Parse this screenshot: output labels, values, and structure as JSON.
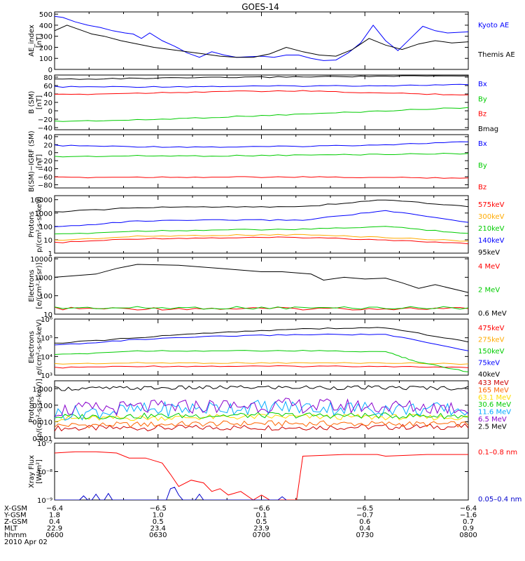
{
  "title": "GOES-14",
  "chart_data": [
    {
      "id": "ae",
      "type": "line",
      "ylabel": [
        "AE_index",
        "[nT]"
      ],
      "yticks": [
        "500",
        "400",
        "300",
        "200",
        "100",
        "0"
      ],
      "ytick_values": [
        500,
        400,
        300,
        200,
        100,
        0
      ],
      "ylim": [
        0,
        520
      ],
      "scale": "linear",
      "series": [
        {
          "name": "Kyoto AE",
          "color": "#0000ff",
          "x": [
            0,
            2,
            5,
            8,
            11,
            14,
            17,
            19,
            21,
            23,
            26,
            29,
            32,
            35,
            38,
            41,
            44,
            47,
            50,
            53,
            56,
            59,
            62,
            65,
            68,
            71,
            74,
            77,
            80,
            83,
            86,
            89,
            92,
            95,
            100
          ],
          "values": [
            480,
            470,
            430,
            400,
            380,
            350,
            330,
            320,
            280,
            330,
            260,
            210,
            150,
            110,
            160,
            130,
            110,
            115,
            120,
            110,
            130,
            130,
            100,
            80,
            85,
            150,
            240,
            400,
            260,
            170,
            280,
            390,
            350,
            330,
            340
          ]
        },
        {
          "name": "Themis AE",
          "color": "#000000",
          "x": [
            0,
            3,
            6,
            9,
            12,
            16,
            20,
            24,
            28,
            32,
            36,
            40,
            44,
            48,
            52,
            56,
            60,
            64,
            68,
            72,
            76,
            80,
            84,
            88,
            92,
            96,
            100
          ],
          "values": [
            350,
            400,
            360,
            320,
            300,
            260,
            230,
            200,
            180,
            160,
            140,
            120,
            110,
            110,
            140,
            200,
            160,
            130,
            120,
            180,
            280,
            220,
            180,
            230,
            260,
            240,
            250
          ]
        }
      ]
    },
    {
      "id": "bsm",
      "type": "line",
      "ylabel": [
        "B (SM)",
        "[nT]"
      ],
      "yticks": [
        "80",
        "60",
        "40",
        "20",
        "0",
        "−20",
        "−40"
      ],
      "ytick_values": [
        80,
        60,
        40,
        20,
        0,
        -20,
        -40
      ],
      "ylim": [
        -45,
        85
      ],
      "scale": "linear",
      "series": [
        {
          "name": "Bx",
          "color": "#0000ff",
          "x": [
            0,
            20,
            40,
            60,
            80,
            100
          ],
          "values": [
            57,
            57,
            58,
            59,
            60,
            62
          ]
        },
        {
          "name": "By",
          "color": "#00cc00",
          "x": [
            0,
            20,
            40,
            60,
            80,
            100
          ],
          "values": [
            -25,
            -22,
            -15,
            -8,
            0,
            8
          ]
        },
        {
          "name": "Bz",
          "color": "#ff0000",
          "x": [
            0,
            20,
            40,
            60,
            80,
            100
          ],
          "values": [
            38,
            42,
            46,
            47,
            42,
            38
          ]
        },
        {
          "name": "Bmag",
          "color": "#000000",
          "x": [
            0,
            20,
            40,
            60,
            80,
            100
          ],
          "values": [
            75,
            77,
            79,
            81,
            82,
            83
          ]
        }
      ]
    },
    {
      "id": "bigrf",
      "type": "line",
      "ylabel": [
        "B(SM)−IGRF (SM)",
        "[nT]"
      ],
      "yticks": [
        "40",
        "20",
        "0",
        "−20",
        "−40",
        "−60",
        "−80"
      ],
      "ytick_values": [
        40,
        20,
        0,
        -20,
        -40,
        -60,
        -80
      ],
      "ylim": [
        -88,
        45
      ],
      "scale": "linear",
      "series": [
        {
          "name": "Bx",
          "color": "#0000ff",
          "x": [
            0,
            20,
            40,
            60,
            80,
            100
          ],
          "values": [
            18,
            15,
            14,
            16,
            20,
            27
          ]
        },
        {
          "name": "By",
          "color": "#00cc00",
          "x": [
            0,
            20,
            40,
            60,
            80,
            100
          ],
          "values": [
            -10,
            -8,
            -8,
            -6,
            -4,
            -2
          ]
        },
        {
          "name": "Bz",
          "color": "#ff0000",
          "x": [
            0,
            20,
            40,
            60,
            80,
            100
          ],
          "values": [
            -62,
            -61,
            -61,
            -61,
            -62,
            -63
          ]
        }
      ]
    },
    {
      "id": "protons_low",
      "type": "line",
      "ylabel": [
        "Protons",
        "p/(cm²-s-sr-keV)"
      ],
      "yticks": [
        "10000",
        "1000",
        "100",
        "10",
        "1"
      ],
      "ytick_values": [
        10000,
        1000,
        100,
        10,
        1
      ],
      "ylim": [
        1,
        20000
      ],
      "scale": "log",
      "series": [
        {
          "name": "575keV",
          "color": "#ff0000",
          "x": [
            0,
            20,
            40,
            60,
            80,
            100
          ],
          "values": [
            6,
            12,
            14,
            15,
            10,
            5
          ]
        },
        {
          "name": "300keV",
          "color": "#ffaa00",
          "x": [
            0,
            20,
            40,
            60,
            80,
            100
          ],
          "values": [
            9,
            18,
            22,
            24,
            15,
            8
          ]
        },
        {
          "name": "210keV",
          "color": "#00cc00",
          "x": [
            0,
            20,
            40,
            60,
            80,
            100
          ],
          "values": [
            25,
            45,
            55,
            60,
            100,
            30
          ]
        },
        {
          "name": "140keV",
          "color": "#0000ff",
          "x": [
            0,
            20,
            40,
            60,
            80,
            100
          ],
          "values": [
            90,
            250,
            300,
            300,
            1500,
            200
          ]
        },
        {
          "name": "95keV",
          "color": "#000000",
          "x": [
            0,
            20,
            40,
            60,
            80,
            100
          ],
          "values": [
            1200,
            2500,
            3000,
            3000,
            10000,
            3000
          ]
        }
      ]
    },
    {
      "id": "electrons_mev",
      "type": "line",
      "ylabel": [
        "Electrons",
        "[e/(cm²-s-sr)]"
      ],
      "yticks": [
        "10000",
        "1000",
        "100",
        "10"
      ],
      "ytick_values": [
        10000,
        1000,
        100,
        10
      ],
      "ylim": [
        10,
        12000
      ],
      "scale": "log",
      "series": [
        {
          "name": "4 MeV",
          "color": "#ff0000",
          "x": [
            0,
            20,
            40,
            60,
            80,
            100
          ],
          "values": [
            20,
            20,
            20,
            20,
            20,
            20
          ]
        },
        {
          "name": "2 MeV",
          "color": "#00cc00",
          "x": [
            0,
            20,
            40,
            60,
            80,
            100
          ],
          "values": [
            22,
            22,
            22,
            22,
            22,
            22
          ]
        },
        {
          "name": "0.6 MeV",
          "color": "#000000",
          "x": [
            0,
            10,
            15,
            20,
            30,
            40,
            50,
            55,
            62,
            65,
            70,
            75,
            80,
            84,
            88,
            92,
            100
          ],
          "values": [
            1000,
            1500,
            3000,
            5000,
            4500,
            3000,
            2000,
            2000,
            1500,
            700,
            1000,
            800,
            900,
            500,
            250,
            400,
            150
          ]
        }
      ]
    },
    {
      "id": "electrons_kev",
      "type": "line",
      "ylabel": [
        "Electrons",
        "e/(cm²-s-sr-keV)"
      ],
      "yticks": [
        "10⁶",
        "10⁵",
        "10⁴",
        "10³"
      ],
      "ytick_values": [
        1000000,
        100000,
        10000,
        1000
      ],
      "ylim": [
        1000,
        1000000
      ],
      "scale": "log",
      "series": [
        {
          "name": "475keV",
          "color": "#ff0000",
          "x": [
            0,
            20,
            40,
            60,
            80,
            100
          ],
          "values": [
            2500,
            3000,
            3000,
            3000,
            3000,
            2500
          ]
        },
        {
          "name": "275keV",
          "color": "#ffaa00",
          "x": [
            0,
            20,
            40,
            60,
            80,
            100
          ],
          "values": [
            4000,
            4500,
            4500,
            4500,
            4500,
            4000
          ]
        },
        {
          "name": "150keV",
          "color": "#00cc00",
          "x": [
            0,
            20,
            40,
            60,
            80,
            88,
            100
          ],
          "values": [
            12000,
            20000,
            20000,
            20000,
            18000,
            5000,
            1500
          ]
        },
        {
          "name": "75keV",
          "color": "#0000ff",
          "x": [
            0,
            20,
            40,
            60,
            80,
            100
          ],
          "values": [
            40000,
            80000,
            120000,
            150000,
            150000,
            20000
          ]
        },
        {
          "name": "40keV",
          "color": "#000000",
          "x": [
            0,
            20,
            40,
            60,
            80,
            100
          ],
          "values": [
            50000,
            100000,
            200000,
            300000,
            350000,
            60000
          ]
        }
      ]
    },
    {
      "id": "protons_high",
      "type": "line",
      "ylabel": [
        "Protons",
        "[p/(cm²-s-sr-keV)]"
      ],
      "yticks": [
        "1.000",
        "0.100",
        "0.010",
        "0.001"
      ],
      "ytick_values": [
        1,
        0.1,
        0.01,
        0.001
      ],
      "ylim": [
        0.001,
        3
      ],
      "scale": "log",
      "series": [
        {
          "name": "433 MeV",
          "color": "#cc0000",
          "values": [
            0.004,
            0.0045,
            0.005
          ]
        },
        {
          "name": "165 MeV",
          "color": "#ff6600",
          "values": [
            0.006,
            0.008,
            0.007
          ]
        },
        {
          "name": "63.1 MeV",
          "color": "#ffdd00",
          "values": [
            0.015,
            0.02,
            0.018
          ]
        },
        {
          "name": "30.6 MeV",
          "color": "#00cc00",
          "values": [
            0.02,
            0.025,
            0.022
          ]
        },
        {
          "name": "11.6 MeV",
          "color": "#00aaff",
          "values": [
            0.03,
            0.08,
            0.05
          ]
        },
        {
          "name": "6.5 MeV",
          "color": "#8800cc",
          "values": [
            0.05,
            0.1,
            0.07
          ]
        },
        {
          "name": "2.5 MeV",
          "color": "#000000",
          "values": [
            1.0,
            1.2,
            1.1
          ]
        }
      ]
    },
    {
      "id": "xray",
      "type": "line",
      "ylabel": [
        "Xray Flux",
        "[W/m²]"
      ],
      "yticks": [
        "10⁻⁷",
        "10⁻⁸",
        "10⁻⁹"
      ],
      "ytick_values": [
        1e-07,
        1e-08,
        1e-09
      ],
      "ylim": [
        1e-09,
        1e-07
      ],
      "scale": "log",
      "series": [
        {
          "name": "0.1–0.8 nm",
          "color": "#ff0000",
          "x": [
            0,
            5,
            10,
            15,
            18,
            22,
            26,
            28,
            30,
            33,
            36,
            38,
            40,
            42,
            45,
            48,
            50,
            52,
            55,
            57,
            58.5,
            60,
            70,
            78,
            80,
            90,
            100
          ],
          "values": [
            4.5e-08,
            5e-08,
            5e-08,
            4.5e-08,
            3e-08,
            3e-08,
            2e-08,
            8e-09,
            3e-09,
            5e-09,
            4e-09,
            2e-09,
            2.5e-09,
            1.5e-09,
            2e-09,
            1e-09,
            1.5e-09,
            1e-09,
            1e-09,
            1e-09,
            1e-09,
            3.5e-08,
            4e-08,
            4e-08,
            3.5e-08,
            4e-08,
            4e-08
          ]
        },
        {
          "name": "0.05–0.4 nm",
          "color": "#0000cc",
          "x": [
            0,
            6,
            7,
            8,
            9,
            10,
            11,
            12,
            13,
            14,
            20,
            27,
            28,
            29,
            30,
            31,
            34,
            35,
            36,
            37,
            54,
            55,
            56
          ],
          "values": [
            1e-09,
            1e-09,
            1.4e-09,
            1e-09,
            1e-09,
            1.6e-09,
            1e-09,
            1e-09,
            1.7e-09,
            1e-09,
            1e-09,
            1e-09,
            2.5e-09,
            2.8e-09,
            1.5e-09,
            1e-09,
            1e-09,
            1.6e-09,
            1e-09,
            1e-09,
            1e-09,
            1.3e-09,
            1e-09
          ]
        }
      ]
    }
  ],
  "time_axis": {
    "row_labels": [
      "X-GSM",
      "Y-GSM",
      "Z-GSM",
      "MLT",
      "hhmm"
    ],
    "columns": [
      [
        "−6.4",
        "1.8",
        "0.4",
        "22.9",
        "0600"
      ],
      [
        "−6.5",
        "1.0",
        "0.5",
        "23.4",
        "0630"
      ],
      [
        "−6.6",
        "0.1",
        "0.5",
        "23.9",
        "0700"
      ],
      [
        "−6.5",
        "−0.7",
        "0.6",
        "0.4",
        "0730"
      ],
      [
        "−6.4",
        "−1.6",
        "0.7",
        "0.9",
        "0800"
      ]
    ],
    "date": "2010 Apr 02"
  }
}
